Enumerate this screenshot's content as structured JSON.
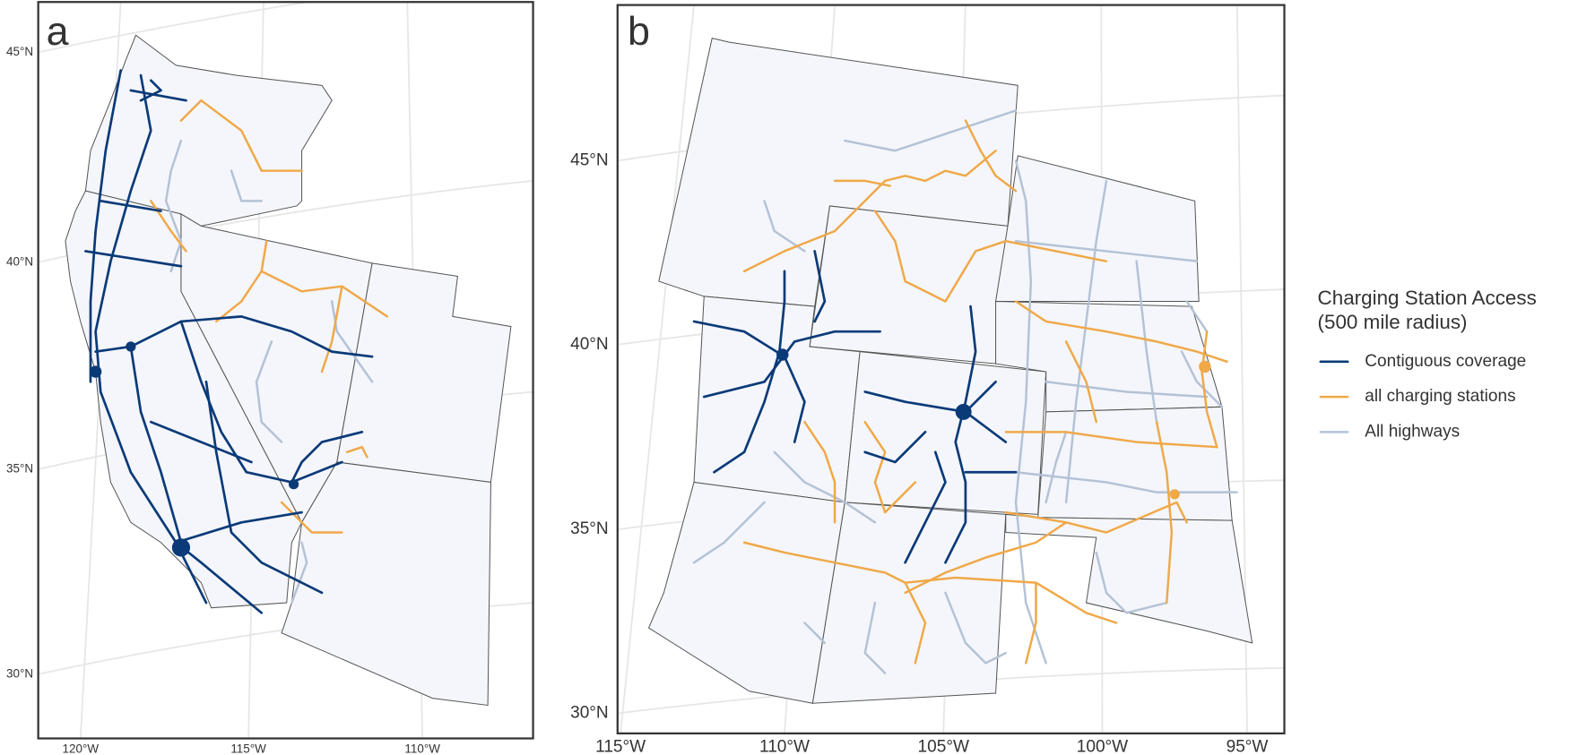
{
  "panels": [
    {
      "label": "a",
      "lat_labels": [
        "45°N",
        "40°N",
        "35°N",
        "30°N"
      ],
      "lon_labels": [
        "120°W",
        "115°W",
        "110°W"
      ]
    },
    {
      "label": "b",
      "lat_labels": [
        "45°N",
        "40°N",
        "35°N",
        "30°N"
      ],
      "lon_labels": [
        "115°W",
        "110°W",
        "105°W",
        "100°W",
        "95°W"
      ]
    }
  ],
  "legend": {
    "title": [
      "Charging Station Access",
      "(500 mile radius)"
    ],
    "items": [
      "Contiguous coverage",
      "all charging stations",
      "All highways"
    ]
  }
}
